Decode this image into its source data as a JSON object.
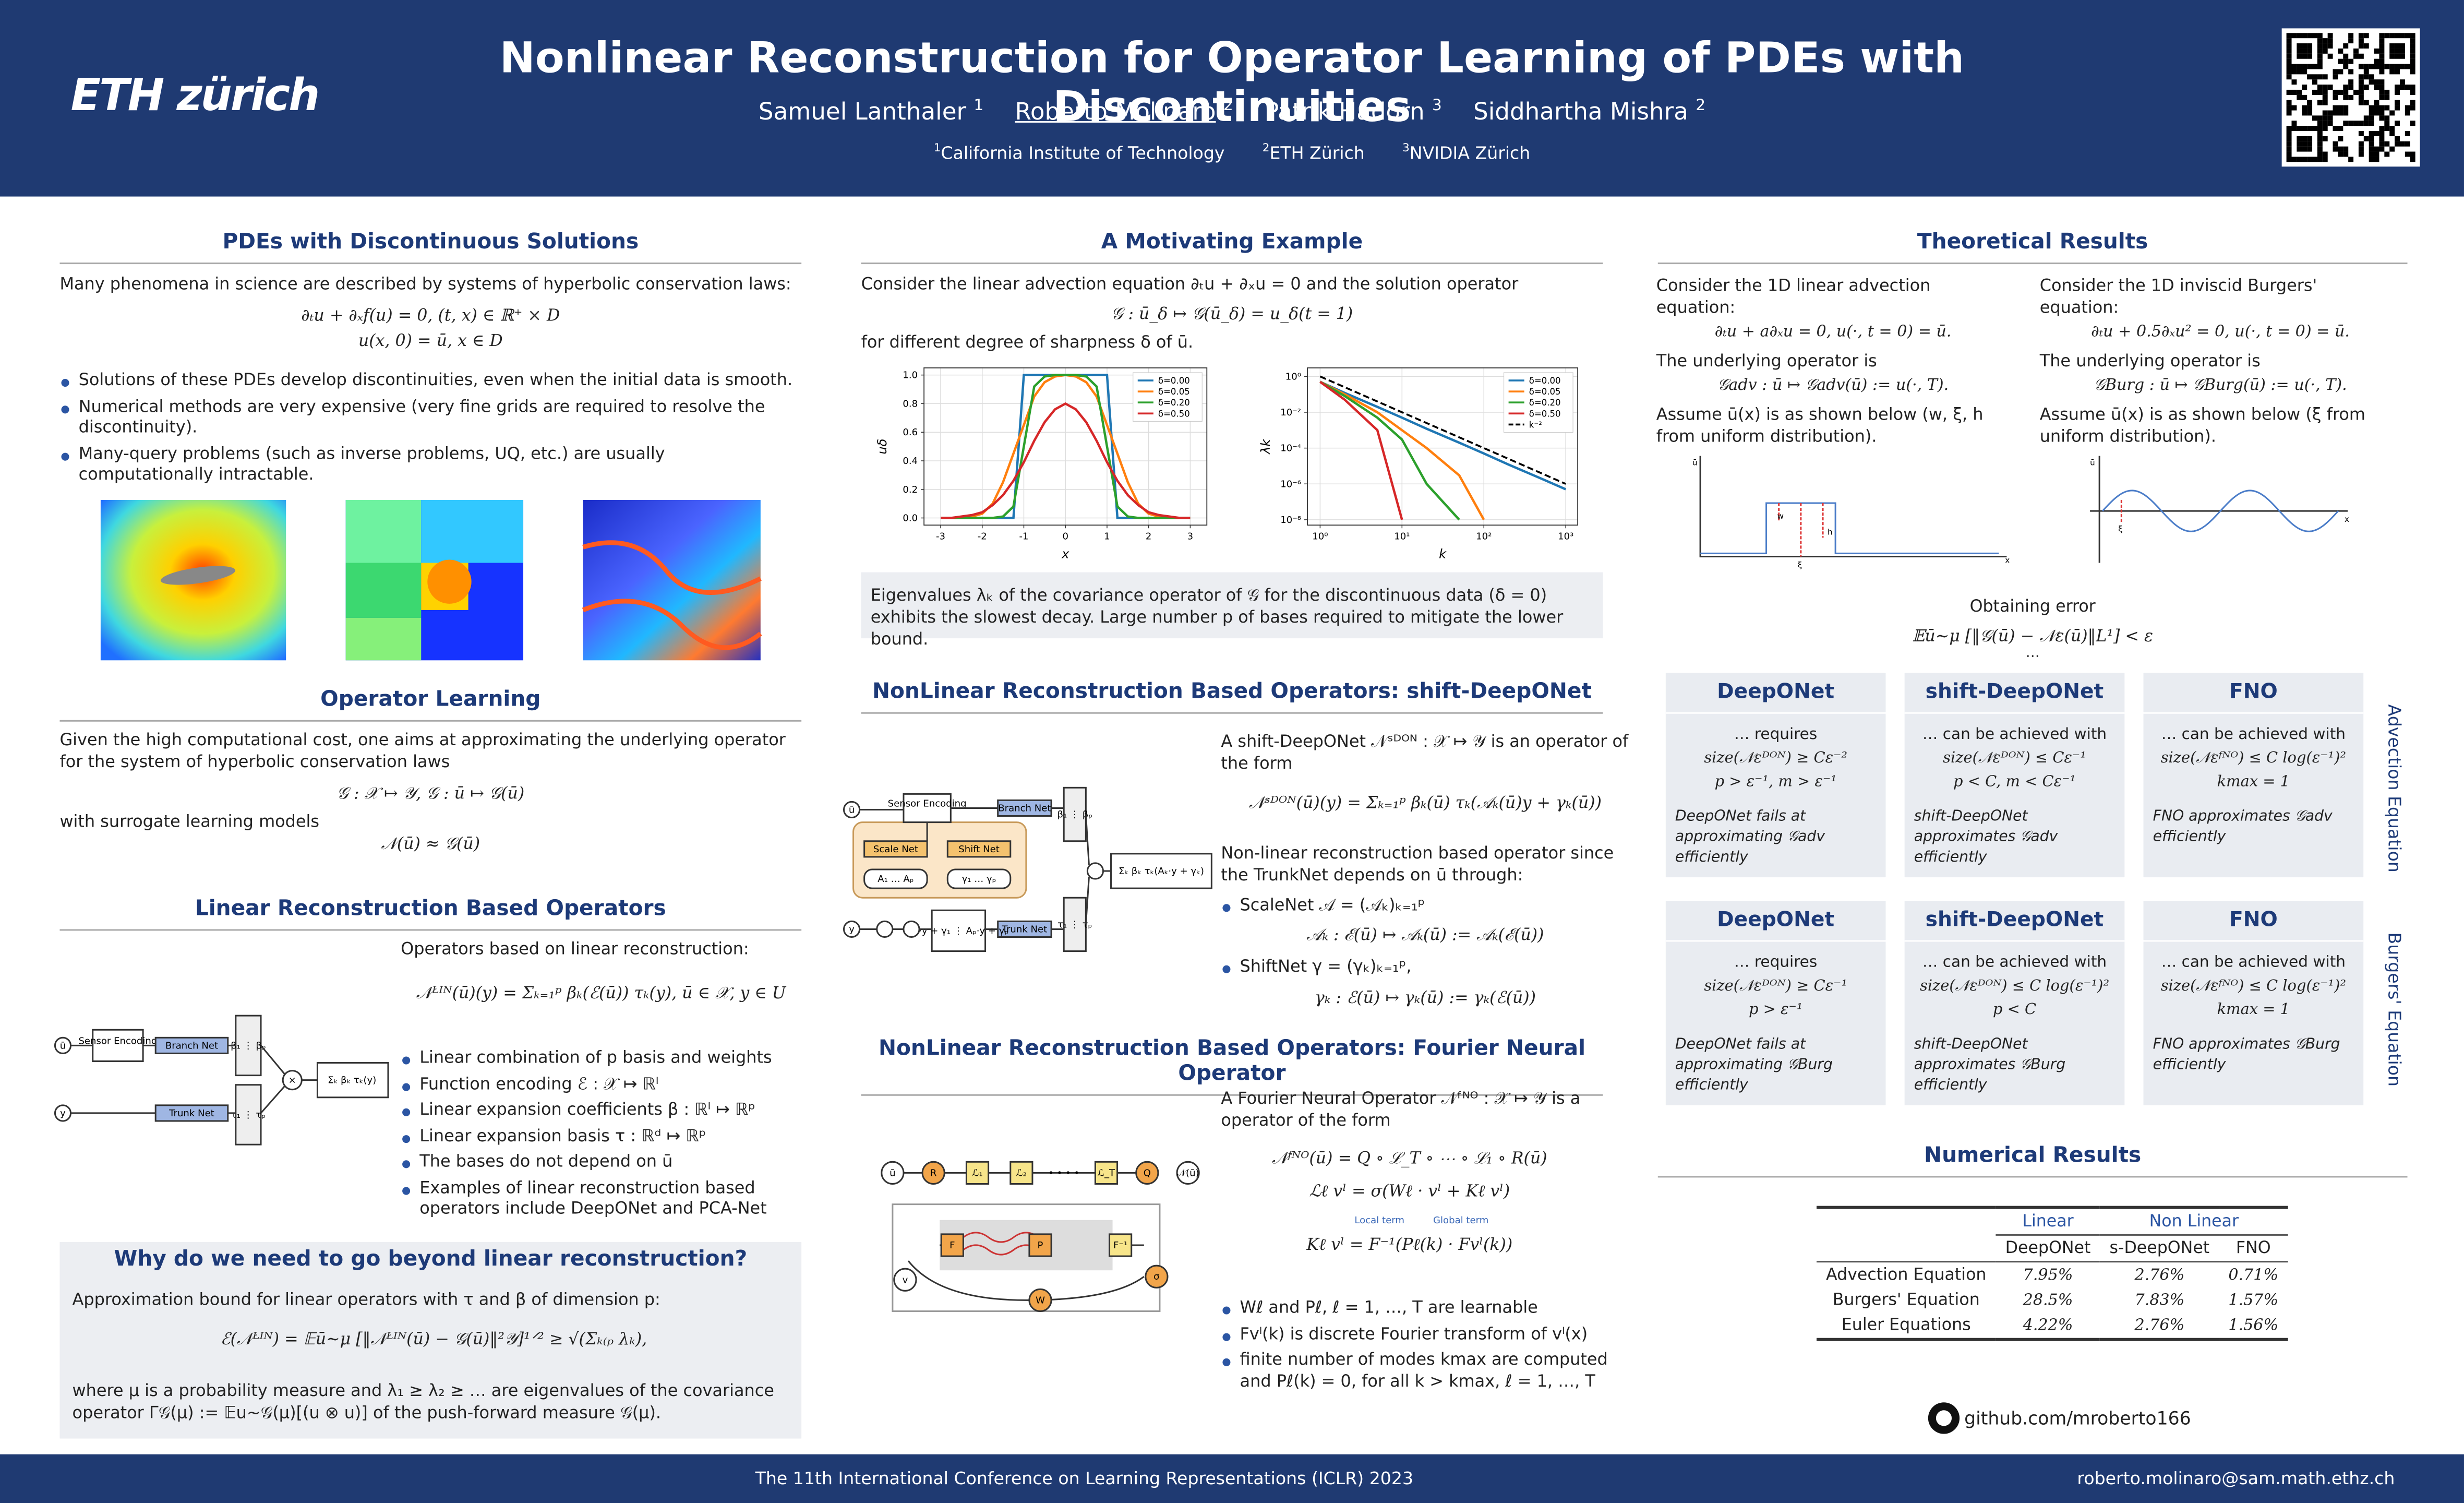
{
  "header": {
    "logo": "ETH zürich",
    "title": "Nonlinear Reconstruction for Operator Learning of PDEs with Discontinuities",
    "authors": [
      {
        "name": "Samuel Lanthaler",
        "sup": "1"
      },
      {
        "name": "Roberto Molinaro",
        "sup": "2"
      },
      {
        "name": "Patrik Hadorn",
        "sup": "3"
      },
      {
        "name": "Siddhartha Mishra",
        "sup": "2"
      }
    ],
    "affiliations": [
      {
        "sup": "1",
        "name": "California Institute of Technology"
      },
      {
        "sup": "2",
        "name": "ETH Zürich"
      },
      {
        "sup": "3",
        "name": "NVIDIA Zürich"
      }
    ]
  },
  "pdes": {
    "heading": "PDEs with Discontinuous Solutions",
    "intro": "Many phenomena in science are described by systems of hyperbolic conservation laws:",
    "equations": [
      "∂ₜu + ∂ₓf(u) = 0,    (t, x) ∈ ℝ⁺ × D",
      "u(x, 0) = ū,    x ∈ D"
    ],
    "bullets": [
      "Solutions of these PDEs develop discontinuities, even when the initial data is smooth.",
      "Numerical methods are very expensive (very fine grids are required to resolve the discontinuity).",
      "Many-query problems (such as inverse problems, UQ, etc.) are usually computationally intractable."
    ]
  },
  "operator_learning": {
    "heading": "Operator Learning",
    "text": "Given the high computational cost, one aims at approximating the underlying operator for the system of hyperbolic conservation laws",
    "equation": "𝒢 : 𝒳 ↦ 𝒴,    𝒢 : ū ↦ 𝒢(ū)",
    "text2": "with surrogate learning models",
    "equation2": "𝒩(ū) ≈ 𝒢(ū)"
  },
  "linear": {
    "heading": "Linear Reconstruction Based Operators",
    "intro": "Operators based on linear reconstruction:",
    "equation": "𝒩ᴸᴵᴺ(ū)(y) = Σₖ₌₁ᵖ βₖ(ℰ(ū)) τₖ(y),    ū ∈ 𝒳,  y ∈ U",
    "bullets": [
      "Linear combination of p basis and weights",
      "Function encoding ℰ : 𝒳 ↦ ℝˡ",
      "Linear expansion coefficients β : ℝˡ ↦ ℝᵖ",
      "Linear expansion basis τ : ℝᵈ ↦ ℝᵖ",
      "The bases do not depend on ū",
      "Examples of linear reconstruction based operators include DeepONet and PCA-Net"
    ],
    "diagram": [
      "ū",
      "y",
      "Sensor Encoding",
      "Branch Net",
      "Trunk Net",
      "β₁ ⋮ βₚ",
      "τ₁ ⋮ τₚ",
      "×",
      "Σₖ βₖ τₖ(y)"
    ]
  },
  "why": {
    "heading": "Why do we need to go beyond linear reconstruction?",
    "text": "Approximation bound for linear operators with τ and β of dimension p:",
    "equation": "ℰ(𝒩ᴸᴵᴺ) = 𝔼ū∼μ [‖𝒩ᴸᴵᴺ(ū) − 𝒢(ū)‖²𝒴]¹ᐟ² ≥ √(Σₖ₍ₚ λₖ),",
    "text2": "where μ is a probability measure and λ₁ ≥ λ₂ ≥ … are eigenvalues of the covariance operator Γ𝒢(μ) := 𝔼u∼𝒢(μ)[(u ⊗ u)] of the push-forward measure 𝒢(μ)."
  },
  "motivating": {
    "heading": "A Motivating Example",
    "text": "Consider the linear advection equation ∂ₜu + ∂ₓu = 0 and the solution operator",
    "equation": "𝒢 : ū_δ ↦ 𝒢(ū_δ) = u_δ(t = 1)",
    "text2": "for different degree of sharpness δ of ū.",
    "caption": "Eigenvalues λₖ of the covariance operator of 𝒢 for the discontinuous data (δ = 0) exhibits the slowest decay. Large number p of bases required to mitigate the lower bound."
  },
  "shift_deeponet": {
    "heading": "NonLinear Reconstruction Based Operators: shift-DeepONet",
    "intro": "A shift-DeepONet 𝒩ˢᴰᴼᴺ : 𝒳 ↦ 𝒴 is an operator of the form",
    "equation": "𝒩ˢᴰᴼᴺ(ū)(y) = Σₖ₌₁ᵖ βₖ(ū) τₖ(𝒜ₖ(ū)y + γₖ(ū))",
    "text": "Non-linear reconstruction based operator since the TrunkNet depends on ū through:",
    "bullets": [
      "ScaleNet 𝒜 = (𝒜ₖ)ₖ₌₁ᵖ",
      "ShiftNet γ = (γₖ)ₖ₌₁ᵖ,"
    ],
    "bullet_equations": [
      "𝒜ₖ : ℰ(ū) ↦ 𝒜ₖ(ū) := 𝒜ₖ(ℰ(ū))",
      "γₖ : ℰ(ū) ↦ γₖ(ū) := γₖ(ℰ(ū))"
    ],
    "diagram": [
      "ū",
      "y",
      "Sensor Encoding",
      "Branch Net",
      "Scale Net",
      "Shift Net",
      "A₁ … Aₚ",
      "γ₁ … γₚ",
      "Trunk Net",
      "β₁ ⋮ βₚ",
      "τ₁ ⋮ τₚ",
      "Σₖ βₖ τₖ(Aₖ·y + γₖ)",
      "A₁·y + γ₁ ⋮ Aₚ·y + γₚ"
    ]
  },
  "fno": {
    "heading": "NonLinear Reconstruction Based Operators: Fourier Neural Operator",
    "intro": "A Fourier Neural Operator 𝒩ᶠᴺᴼ : 𝒳 ↦ 𝒴 is a operator of the form",
    "equations": [
      "𝒩ᶠᴺᴼ(ū) = Q ∘ ℒ_T ∘ ⋯ ∘ ℒ₁ ∘ R(ū)",
      "ℒℓ vˡ = σ(Wℓ · vˡ + Kℓ vˡ)",
      "Kℓ vˡ = F⁻¹(Pℓ(k) · Fvˡ(k))"
    ],
    "term_labels": [
      "Local term",
      "Global term"
    ],
    "bullets": [
      "Wℓ and Pℓ, ℓ = 1, …, T are learnable",
      "Fvˡ(k) is discrete Fourier transform of vˡ(x)",
      "finite number of modes kmax are computed and Pℓ(k) = 0, for all k > kmax, ℓ = 1, …, T"
    ],
    "diagram": [
      "ū",
      "R",
      "ℒ₁",
      "ℒ₂",
      "ℒ_T",
      "Q",
      "𝒩(ū)",
      "F",
      "P",
      "F⁻¹",
      "W",
      "σ",
      "v"
    ]
  },
  "theory": {
    "heading": "Theoretical Results",
    "advection": {
      "lines": [
        "Consider the 1D linear advection equation:",
        "∂ₜu + a∂ₓu = 0,    u(·, t = 0) = ū.",
        "The underlying operator is",
        "𝒢adv : ū ↦ 𝒢adv(ū) := u(·, T).",
        "Assume ū(x) is as shown below (w, ξ, h from uniform distribution)."
      ],
      "figure_labels": [
        "ū",
        "x",
        "w",
        "ξ",
        "h"
      ]
    },
    "burgers": {
      "lines": [
        "Consider the 1D inviscid Burgers' equation:",
        "∂ₜu + 0.5∂ₓu² = 0,    u(·, t = 0) = ū.",
        "The underlying operator is",
        "𝒢Burg : ū ↦ 𝒢Burg(ū) := u(·, T).",
        "Assume ū(x) is as shown below (ξ from uniform distribution)."
      ],
      "figure_labels": [
        "ū",
        "x",
        "ξ"
      ]
    },
    "error_label": "Obtaining error",
    "error_equation": "𝔼ū∼μ [‖𝒢(ū) − 𝒩ε(ū)‖L¹] < ε",
    "dots": "⋯",
    "rows": [
      {
        "label": "Advection Equation",
        "boxes": [
          {
            "title": "DeepONet",
            "lines": [
              "… requires",
              "size(𝒩εᴰᴼᴺ) ≥ Cε⁻²",
              "p > ε⁻¹,  m > ε⁻¹"
            ],
            "note": "DeepONet fails at approximating 𝒢adv efficiently"
          },
          {
            "title": "shift-DeepONet",
            "lines": [
              "… can be achieved with",
              "size(𝒩εᴰᴼᴺ) ≤ Cε⁻¹",
              "p < C,  m < Cε⁻¹"
            ],
            "note": "shift-DeepONet approximates 𝒢adv efficiently"
          },
          {
            "title": "FNO",
            "lines": [
              "… can be achieved with",
              "size(𝒩εᶠᴺᴼ) ≤ C log(ε⁻¹)²",
              "kmax = 1"
            ],
            "note": "FNO approximates 𝒢adv efficiently"
          }
        ]
      },
      {
        "label": "Burgers' Equation",
        "boxes": [
          {
            "title": "DeepONet",
            "lines": [
              "… requires",
              "size(𝒩εᴰᴼᴺ) ≥ Cε⁻¹",
              "p > ε⁻¹"
            ],
            "note": "DeepONet fails at approximating 𝒢Burg efficiently"
          },
          {
            "title": "shift-DeepONet",
            "lines": [
              "… can be achieved with",
              "size(𝒩εᴰᴼᴺ) ≤ C log(ε⁻¹)²",
              "p < C"
            ],
            "note": "shift-DeepONet approximates 𝒢Burg efficiently"
          },
          {
            "title": "FNO",
            "lines": [
              "… can be achieved with",
              "size(𝒩εᶠᴺᴼ) ≤ C log(ε⁻¹)²",
              "kmax = 1"
            ],
            "note": "FNO approximates 𝒢Burg efficiently"
          }
        ]
      }
    ]
  },
  "numerical": {
    "heading": "Numerical Results",
    "group_headers": [
      "Linear",
      "Non Linear"
    ],
    "headers": [
      "DeepONet",
      "s-DeepONet",
      "FNO"
    ],
    "rows": [
      [
        "Advection Equation",
        "7.95%",
        "2.76%",
        "0.71%"
      ],
      [
        "Burgers' Equation",
        "28.5%",
        "7.83%",
        "1.57%"
      ],
      [
        "Euler Equations",
        "4.22%",
        "2.76%",
        "1.56%"
      ]
    ]
  },
  "github": "github.com/mroberto166",
  "footer": {
    "conference": "The 11th International Conference on Learning Representations (ICLR) 2023",
    "email": "roberto.molinaro@sam.math.ethz.ch"
  },
  "chart_data": [
    {
      "type": "line",
      "xlabel": "x",
      "ylabel": "uδ",
      "xlim": [
        -3.4,
        3.4
      ],
      "ylim": [
        -0.05,
        1.05
      ],
      "xticks": [
        -3,
        -2,
        -1,
        0,
        1,
        2,
        3
      ],
      "yticks": [
        {
          "value": 0,
          "label": "0.0"
        },
        0.2,
        0.4,
        0.6,
        0.8,
        {
          "value": 1,
          "label": "1.0"
        }
      ],
      "grid": true,
      "legend": "upper right",
      "x": [
        -3,
        -2.75,
        -2.5,
        -2.25,
        -2,
        -1.75,
        -1.5,
        -1.25,
        -1,
        -0.75,
        -0.5,
        -0.25,
        0,
        0.25,
        0.5,
        0.75,
        1,
        1.25,
        1.5,
        1.75,
        2,
        2.25,
        2.5,
        2.75,
        3
      ],
      "series": [
        {
          "name": "δ=0.00",
          "color": "#1f77b4",
          "values": [
            0,
            0,
            0,
            0,
            0,
            0,
            0,
            0,
            1,
            1,
            1,
            1,
            1,
            1,
            1,
            1,
            1,
            0,
            0,
            0,
            0,
            0,
            0,
            0,
            0
          ]
        },
        {
          "name": "δ=0.05",
          "color": "#ff7f0e",
          "values": [
            0,
            0,
            0,
            0.01,
            0.03,
            0.1,
            0.25,
            0.45,
            0.65,
            0.85,
            0.95,
            0.99,
            1,
            0.99,
            0.95,
            0.85,
            0.65,
            0.45,
            0.25,
            0.1,
            0.03,
            0.01,
            0,
            0,
            0
          ]
        },
        {
          "name": "δ=0.20",
          "color": "#2ca02c",
          "values": [
            0,
            0,
            0,
            0,
            0,
            0,
            0.01,
            0.08,
            0.5,
            0.92,
            0.99,
            1,
            1,
            1,
            0.99,
            0.92,
            0.5,
            0.08,
            0.01,
            0,
            0,
            0,
            0,
            0,
            0
          ]
        },
        {
          "name": "δ=0.50",
          "color": "#d62728",
          "values": [
            0,
            0,
            0.01,
            0.02,
            0.04,
            0.09,
            0.16,
            0.26,
            0.39,
            0.54,
            0.67,
            0.76,
            0.8,
            0.76,
            0.67,
            0.54,
            0.39,
            0.26,
            0.16,
            0.09,
            0.04,
            0.02,
            0.01,
            0,
            0
          ]
        }
      ]
    },
    {
      "type": "line",
      "xlabel": "k",
      "ylabel": "λk",
      "xlog": true,
      "ylog": true,
      "xlim": [
        0.7,
        1400
      ],
      "ylim": [
        5e-09,
        3
      ],
      "xticks": [
        {
          "value": 1,
          "label": "10⁰"
        },
        {
          "value": 10,
          "label": "10¹"
        },
        {
          "value": 100,
          "label": "10²"
        },
        {
          "value": 1000,
          "label": "10³"
        }
      ],
      "yticks": [
        {
          "value": 1,
          "label": "10⁰"
        },
        {
          "value": 0.01,
          "label": "10⁻²"
        },
        {
          "value": 0.0001,
          "label": "10⁻⁴"
        },
        {
          "value": 1e-06,
          "label": "10⁻⁶"
        },
        {
          "value": 1e-08,
          "label": "10⁻⁸"
        }
      ],
      "grid": true,
      "legend": "upper right",
      "x": [
        1,
        2,
        5,
        10,
        20,
        50,
        100,
        200,
        500,
        1000
      ],
      "series": [
        {
          "name": "δ=0.00",
          "color": "#1f77b4",
          "values": [
            0.5,
            0.12,
            0.02,
            0.005,
            0.0012,
            0.0002,
            5e-05,
            1.2e-05,
            2e-06,
            5e-07
          ]
        },
        {
          "name": "δ=0.05",
          "color": "#ff7f0e",
          "values": [
            0.5,
            0.1,
            0.01,
            0.001,
            0.0001,
            3e-06,
            1e-08,
            null,
            null,
            null
          ]
        },
        {
          "name": "δ=0.20",
          "color": "#2ca02c",
          "values": [
            0.5,
            0.08,
            0.005,
            0.0003,
            1e-06,
            1e-08,
            null,
            null,
            null,
            null
          ]
        },
        {
          "name": "δ=0.50",
          "color": "#d62728",
          "values": [
            0.5,
            0.05,
            0.001,
            1e-08,
            null,
            null,
            null,
            null,
            null,
            null
          ]
        },
        {
          "name": "k⁻²",
          "color": "#000000",
          "style": "dashed",
          "values": [
            1,
            0.25,
            0.04,
            0.01,
            0.0025,
            0.0004,
            0.0001,
            2.5e-05,
            4e-06,
            1e-06
          ]
        }
      ]
    }
  ]
}
